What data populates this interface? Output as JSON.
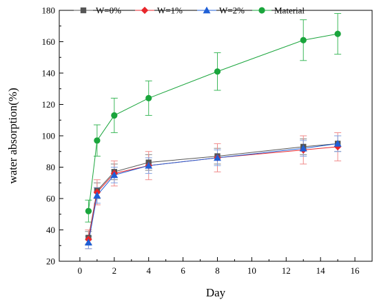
{
  "chart_data": {
    "type": "line",
    "title": "",
    "xlabel": "Day",
    "ylabel": "water absorption(%)",
    "xlim": [
      -1.2,
      17
    ],
    "ylim": [
      20,
      180
    ],
    "xticks": [
      0,
      2,
      4,
      6,
      8,
      10,
      12,
      14,
      16
    ],
    "yticks": [
      20,
      40,
      60,
      80,
      100,
      120,
      140,
      160,
      180
    ],
    "grid": false,
    "legend_position": "top",
    "x": [
      0.5,
      1,
      2,
      4,
      8,
      13,
      15
    ],
    "series": [
      {
        "name": "W=0%",
        "marker": "square",
        "color": "#555555",
        "error_color": "#7f7f7f",
        "values": [
          35,
          65,
          77,
          83,
          87,
          93,
          95
        ],
        "errors": [
          4,
          5,
          5,
          5,
          5,
          5,
          5
        ]
      },
      {
        "name": "W=1%",
        "marker": "diamond",
        "color": "#e8262b",
        "error_color": "#f08a8a",
        "values": [
          34,
          64,
          76,
          81,
          86,
          91,
          93
        ],
        "errors": [
          6,
          8,
          8,
          9,
          9,
          9,
          9
        ]
      },
      {
        "name": "W=2%",
        "marker": "triangle",
        "color": "#1f5fd6",
        "error_color": "#7f9fe0",
        "values": [
          32,
          62,
          75,
          81,
          86,
          92,
          95
        ],
        "errors": [
          4,
          5,
          5,
          5,
          5,
          5,
          5
        ]
      },
      {
        "name": "Material",
        "marker": "circle",
        "color": "#1aa53c",
        "error_color": "#3cb85a",
        "values": [
          52,
          97,
          113,
          124,
          141,
          161,
          165
        ],
        "errors": [
          7,
          10,
          11,
          11,
          12,
          13,
          13
        ]
      }
    ]
  }
}
